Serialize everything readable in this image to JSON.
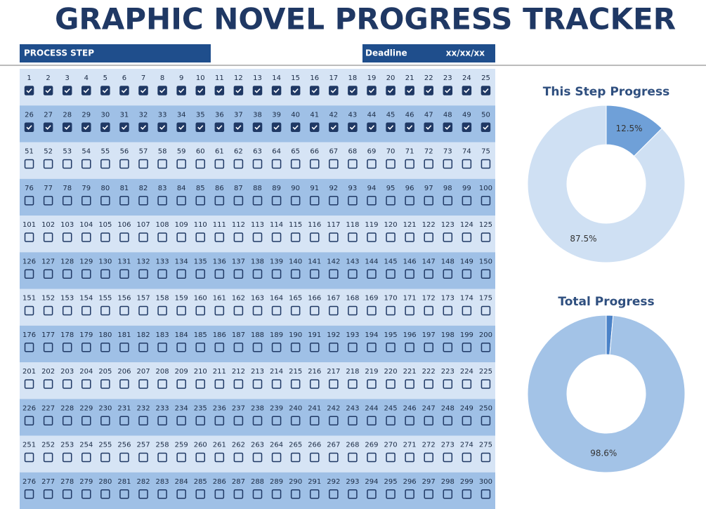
{
  "header": {
    "title": "GRAPHIC NOVEL PROGRESS TRACKER",
    "process_step": "PROCESS STEP",
    "deadline_label": "Deadline",
    "deadline_value": "xx/xx/xx"
  },
  "steps": {
    "numbers": [
      [
        1,
        2,
        3,
        4,
        5,
        6,
        7,
        8,
        9,
        10,
        11,
        12,
        13,
        14,
        15,
        16,
        17,
        18,
        19,
        20,
        21,
        22,
        23,
        24,
        25
      ],
      [
        26,
        27,
        28,
        29,
        30,
        31,
        32,
        33,
        34,
        35,
        36,
        37,
        38,
        39,
        40,
        41,
        42,
        43,
        44,
        45,
        46,
        47,
        48,
        49,
        50
      ],
      [
        51,
        52,
        53,
        54,
        55,
        56,
        57,
        58,
        59,
        60,
        61,
        62,
        63,
        64,
        65,
        66,
        67,
        68,
        69,
        70,
        71,
        72,
        73,
        74,
        75
      ],
      [
        76,
        77,
        78,
        79,
        80,
        81,
        82,
        83,
        84,
        85,
        86,
        87,
        88,
        89,
        90,
        91,
        92,
        93,
        94,
        95,
        96,
        97,
        98,
        99,
        100
      ],
      [
        101,
        102,
        103,
        104,
        105,
        106,
        107,
        108,
        109,
        110,
        111,
        112,
        113,
        114,
        115,
        116,
        117,
        118,
        119,
        120,
        121,
        122,
        123,
        124,
        125
      ],
      [
        126,
        127,
        128,
        129,
        130,
        131,
        132,
        133,
        134,
        135,
        136,
        137,
        138,
        139,
        140,
        141,
        142,
        143,
        144,
        145,
        146,
        147,
        148,
        149,
        150
      ],
      [
        151,
        152,
        153,
        154,
        155,
        156,
        157,
        158,
        159,
        160,
        161,
        162,
        163,
        164,
        165,
        166,
        167,
        168,
        169,
        170,
        171,
        172,
        173,
        174,
        175
      ],
      [
        176,
        177,
        178,
        179,
        180,
        181,
        182,
        183,
        184,
        185,
        186,
        187,
        188,
        189,
        190,
        191,
        192,
        193,
        194,
        195,
        196,
        197,
        198,
        199,
        200
      ],
      [
        201,
        202,
        203,
        204,
        205,
        206,
        207,
        208,
        209,
        210,
        211,
        212,
        213,
        214,
        215,
        216,
        217,
        218,
        219,
        220,
        221,
        222,
        223,
        224,
        225
      ],
      [
        226,
        227,
        228,
        229,
        230,
        231,
        232,
        233,
        234,
        235,
        236,
        237,
        238,
        239,
        240,
        241,
        242,
        243,
        244,
        245,
        246,
        247,
        248,
        249,
        250
      ],
      [
        251,
        252,
        253,
        254,
        255,
        256,
        257,
        258,
        259,
        260,
        261,
        262,
        263,
        264,
        265,
        266,
        267,
        268,
        269,
        270,
        271,
        272,
        273,
        274,
        275
      ],
      [
        276,
        277,
        278,
        279,
        280,
        281,
        282,
        283,
        284,
        285,
        286,
        287,
        288,
        289,
        290,
        291,
        292,
        293,
        294,
        295,
        296,
        297,
        298,
        299,
        300
      ]
    ],
    "checked": [
      [
        true,
        true,
        true,
        true,
        true,
        true,
        true,
        true,
        true,
        true,
        true,
        true,
        true,
        true,
        true,
        true,
        true,
        true,
        true,
        true,
        true,
        true,
        true,
        true,
        true
      ],
      [
        true,
        true,
        true,
        true,
        true,
        true,
        true,
        true,
        true,
        true,
        true,
        true,
        true,
        true,
        true,
        true,
        true,
        true,
        true,
        true,
        true,
        true,
        true,
        true,
        true
      ],
      [
        false,
        false,
        false,
        false,
        false,
        false,
        false,
        false,
        false,
        false,
        false,
        false,
        false,
        false,
        false,
        false,
        false,
        false,
        false,
        false,
        false,
        false,
        false,
        false,
        false
      ],
      [
        false,
        false,
        false,
        false,
        false,
        false,
        false,
        false,
        false,
        false,
        false,
        false,
        false,
        false,
        false,
        false,
        false,
        false,
        false,
        false,
        false,
        false,
        false,
        false,
        false
      ],
      [
        false,
        false,
        false,
        false,
        false,
        false,
        false,
        false,
        false,
        false,
        false,
        false,
        false,
        false,
        false,
        false,
        false,
        false,
        false,
        false,
        false,
        false,
        false,
        false,
        false
      ],
      [
        false,
        false,
        false,
        false,
        false,
        false,
        false,
        false,
        false,
        false,
        false,
        false,
        false,
        false,
        false,
        false,
        false,
        false,
        false,
        false,
        false,
        false,
        false,
        false,
        false
      ],
      [
        false,
        false,
        false,
        false,
        false,
        false,
        false,
        false,
        false,
        false,
        false,
        false,
        false,
        false,
        false,
        false,
        false,
        false,
        false,
        false,
        false,
        false,
        false,
        false,
        false
      ],
      [
        false,
        false,
        false,
        false,
        false,
        false,
        false,
        false,
        false,
        false,
        false,
        false,
        false,
        false,
        false,
        false,
        false,
        false,
        false,
        false,
        false,
        false,
        false,
        false,
        false
      ],
      [
        false,
        false,
        false,
        false,
        false,
        false,
        false,
        false,
        false,
        false,
        false,
        false,
        false,
        false,
        false,
        false,
        false,
        false,
        false,
        false,
        false,
        false,
        false,
        false,
        false
      ],
      [
        false,
        false,
        false,
        false,
        false,
        false,
        false,
        false,
        false,
        false,
        false,
        false,
        false,
        false,
        false,
        false,
        false,
        false,
        false,
        false,
        false,
        false,
        false,
        false,
        false
      ],
      [
        false,
        false,
        false,
        false,
        false,
        false,
        false,
        false,
        false,
        false,
        false,
        false,
        false,
        false,
        false,
        false,
        false,
        false,
        false,
        false,
        false,
        false,
        false,
        false,
        false
      ],
      [
        false,
        false,
        false,
        false,
        false,
        false,
        false,
        false,
        false,
        false,
        false,
        false,
        false,
        false,
        false,
        false,
        false,
        false,
        false,
        false,
        false,
        false,
        false,
        false,
        false
      ]
    ]
  },
  "chart_data": [
    {
      "type": "pie",
      "title": "This Step Progress",
      "values": [
        12.5,
        87.5
      ],
      "value_labels": [
        "12.5%",
        "87.5%"
      ],
      "colors": [
        "#6fa0d8",
        "#cfe0f3"
      ]
    },
    {
      "type": "pie",
      "title": "Total Progress",
      "values": [
        1.4,
        98.6
      ],
      "value_labels": [
        null,
        "98.6%"
      ],
      "colors": [
        "#4a82c8",
        "#a3c3e7"
      ]
    }
  ]
}
